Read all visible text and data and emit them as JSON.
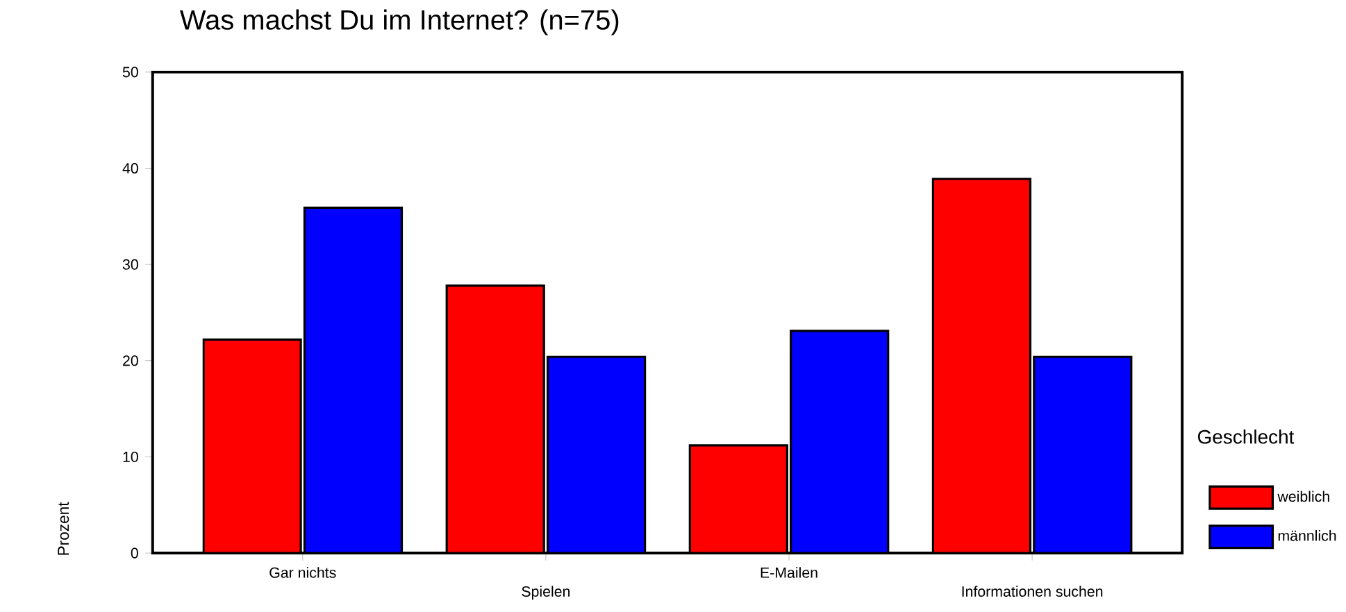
{
  "chart_data": {
    "type": "bar",
    "title": "Was machst Du im Internet? (n=75)",
    "ylabel": "Prozent",
    "legend_title": "Geschlecht",
    "legend": "right",
    "categories": [
      "Gar nichts",
      "Spielen",
      "E-Mailen",
      "Informationen suchen"
    ],
    "series": [
      {
        "name": "weiblich",
        "color": "#ff0000",
        "values": [
          22.2,
          27.8,
          11.2,
          38.9
        ]
      },
      {
        "name": "männlich",
        "color": "#0000ff",
        "values": [
          35.9,
          20.4,
          23.1,
          20.4
        ]
      }
    ],
    "ylim": [
      0,
      50
    ],
    "yticks": [
      0,
      10,
      20,
      30,
      40,
      50
    ]
  }
}
